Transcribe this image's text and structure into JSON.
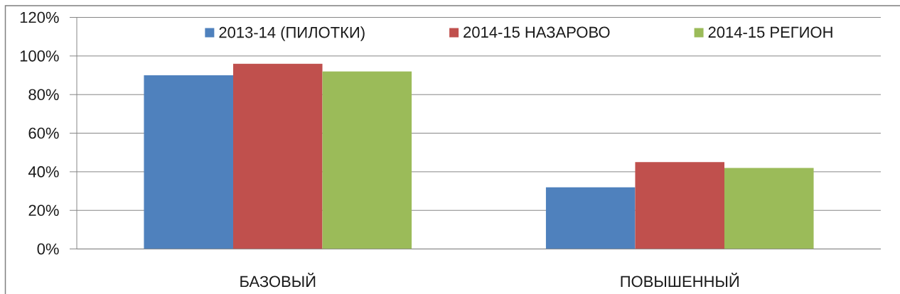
{
  "chart_data": {
    "type": "bar",
    "categories": [
      "БАЗОВЫЙ",
      "ПОВЫШЕННЫЙ"
    ],
    "series": [
      {
        "name": "2013-14 (ПИЛОТКИ)",
        "color": "#4f81bd",
        "values": [
          90,
          32
        ]
      },
      {
        "name": "2014-15 НАЗАРОВО",
        "color": "#c0504d",
        "values": [
          96,
          45
        ]
      },
      {
        "name": "2014-15 РЕГИОН",
        "color": "#9bbb59",
        "values": [
          92,
          42
        ]
      }
    ],
    "ylim": [
      0,
      120
    ],
    "yticks": [
      {
        "value": 0,
        "label": "0%"
      },
      {
        "value": 20,
        "label": "20%"
      },
      {
        "value": 40,
        "label": "40%"
      },
      {
        "value": 60,
        "label": "60%"
      },
      {
        "value": 80,
        "label": "80%"
      },
      {
        "value": 100,
        "label": "100%"
      },
      {
        "value": 120,
        "label": "120%"
      }
    ],
    "grid": "y",
    "legend": "top"
  }
}
